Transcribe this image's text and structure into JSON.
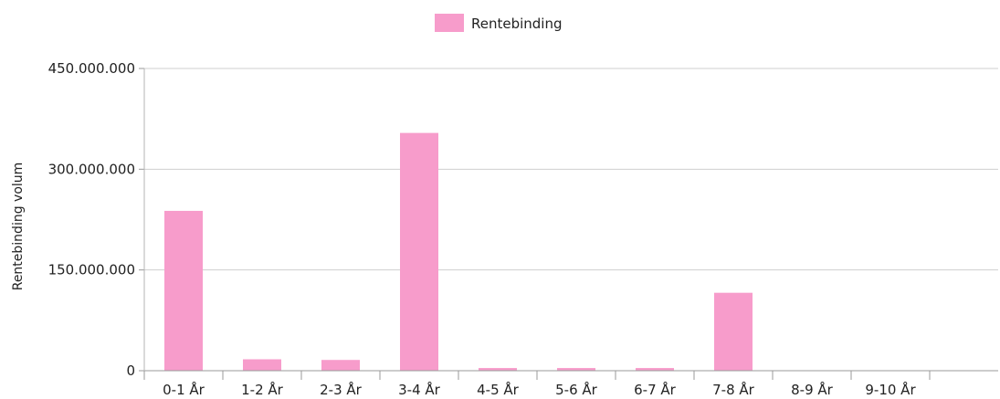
{
  "chart_data": {
    "type": "bar",
    "categories": [
      "0-1 År",
      "1-2 År",
      "2-3 År",
      "3-4 År",
      "4-5 År",
      "5-6 År",
      "6-7 År",
      "7-8 År",
      "8-9 År",
      "9-10 År"
    ],
    "series": [
      {
        "name": "Rentebinding",
        "color": "#f79ccb",
        "values": [
          238000000,
          17000000,
          16000000,
          354000000,
          4000000,
          4000000,
          4000000,
          116000000,
          0,
          0
        ]
      }
    ],
    "title": "",
    "xlabel": "",
    "ylabel": "Rentebinding volum",
    "ylim": [
      0,
      450000000
    ],
    "yticks": [
      0,
      150000000,
      300000000,
      450000000
    ],
    "ytick_labels": [
      "0",
      "150.000.000",
      "300.000.000",
      "450.000.000"
    ],
    "grid": true,
    "legend_position": "top-center"
  }
}
